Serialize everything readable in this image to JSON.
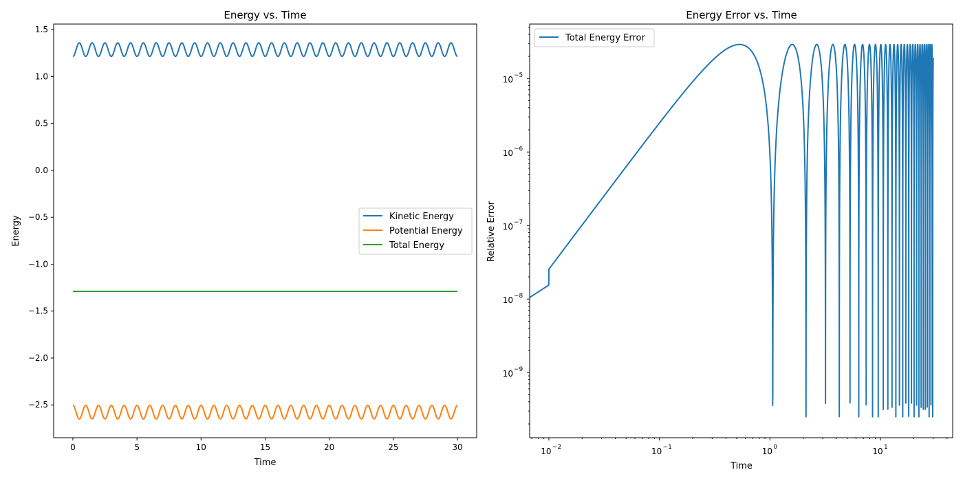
{
  "colors": {
    "kinetic": "#1f77b4",
    "potential": "#ff7f0e",
    "total": "#2ca02c",
    "error": "#1f77b4"
  },
  "chart_data": [
    {
      "type": "line",
      "title": "Energy vs. Time",
      "xlabel": "Time",
      "ylabel": "Energy",
      "xlim": [
        -1.5,
        31.5
      ],
      "ylim": [
        -2.85,
        1.56
      ],
      "xticks": [
        0,
        5,
        10,
        15,
        20,
        25,
        30
      ],
      "xtick_labels": [
        "0",
        "5",
        "10",
        "15",
        "20",
        "25",
        "30"
      ],
      "yticks": [
        1.5,
        1.0,
        0.5,
        0.0,
        -0.5,
        -1.0,
        -1.5,
        -2.0,
        -2.5
      ],
      "ytick_labels": [
        "1.5",
        "1.0",
        "0.5",
        "0.0",
        "−0.5",
        "−1.0",
        "−1.5",
        "−2.0",
        "−2.5"
      ],
      "legend": "center-right",
      "grid": false,
      "series": [
        {
          "name": "Kinetic Energy",
          "model": "oscillation",
          "x_range": [
            0,
            30
          ],
          "min": 1.215,
          "max": 1.36,
          "period": 1.0,
          "phase": "starts at minimum"
        },
        {
          "name": "Potential Energy",
          "model": "oscillation",
          "x_range": [
            0,
            30
          ],
          "min": -2.65,
          "max": -2.505,
          "period": 1.0,
          "phase": "starts at maximum"
        },
        {
          "name": "Total Energy",
          "model": "constant",
          "x_range": [
            0,
            30
          ],
          "value": -1.29
        }
      ]
    },
    {
      "type": "line",
      "title": "Energy Error vs. Time",
      "xlabel": "Time",
      "ylabel": "Relative Error",
      "xscale": "log",
      "yscale": "log",
      "xlim": [
        0.0067,
        45
      ],
      "ylim": [
        1.3e-10,
        5.5e-05
      ],
      "xticks": [
        0.01,
        0.1,
        1,
        10
      ],
      "xtick_labels": [
        "10",
        "10",
        "10",
        "10"
      ],
      "xtick_exponents": [
        "−2",
        "−1",
        "0",
        "1"
      ],
      "yticks": [
        1e-05,
        1e-06,
        1e-07,
        1e-08,
        1e-09
      ],
      "ytick_labels": [
        "10",
        "10",
        "10",
        "10",
        "10"
      ],
      "ytick_exponents": [
        "−5",
        "−6",
        "−7",
        "−8",
        "−9"
      ],
      "legend": "top-left",
      "grid": false,
      "series": [
        {
          "name": "Total Energy Error",
          "model": "oscillating error",
          "x_range": [
            0.0067,
            30
          ],
          "period": 1.06,
          "peak": 2.9e-05,
          "x": [
            0.0067,
            0.01,
            0.1,
            0.52,
            0.8,
            1.04,
            1.2,
            1.6,
            2.12,
            2.65,
            3.18,
            4.24,
            5.3,
            9.5
          ],
          "y": [
            1.05e-08,
            1.55e-08,
            1.55e-06,
            2.9e-05,
            1e-05,
            3e-09,
            1e-06,
            2.9e-05,
            3.3e-09,
            2.9e-05,
            7.5e-09,
            7.5e-10,
            6.5e-10,
            2.5e-10
          ]
        }
      ]
    }
  ]
}
